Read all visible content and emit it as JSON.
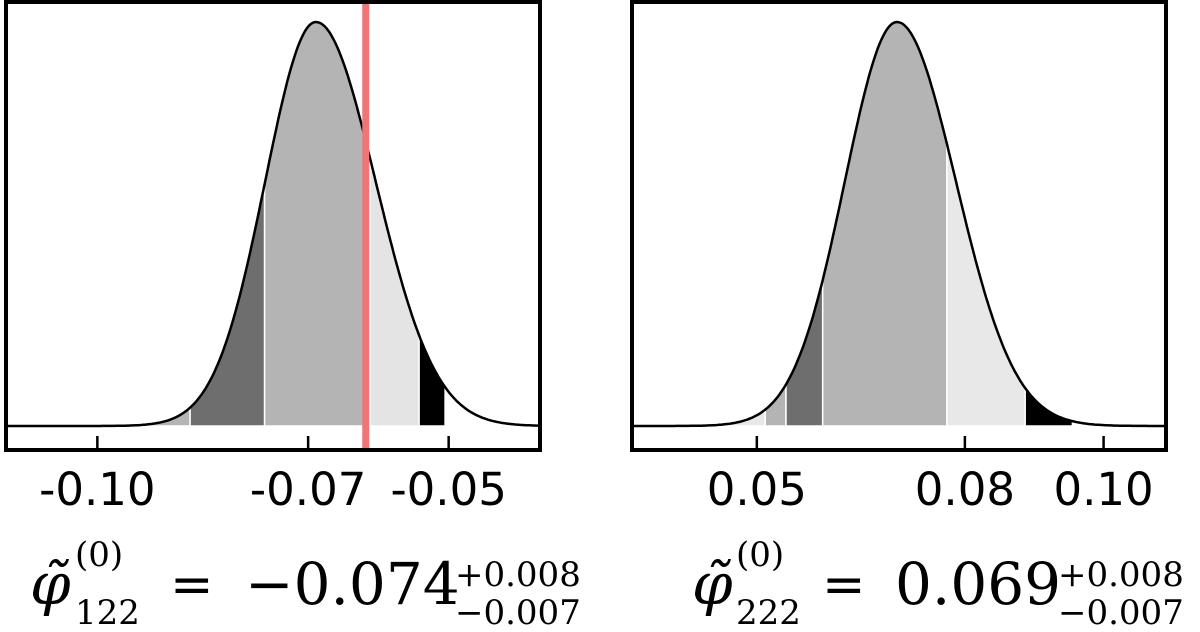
{
  "chart_data": [
    {
      "type": "area",
      "description_kind": "posterior density with shaded credible bands",
      "parameter": {
        "symbol": "φ̃",
        "superscript": "(0)",
        "subscript": "122"
      },
      "estimate": {
        "value": "−0.074",
        "plus": "+0.008",
        "minus": "−0.007",
        "equals": "="
      },
      "xlim": [
        -0.113,
        -0.037
      ],
      "mode": -0.0689,
      "sigma_left": 0.0072,
      "sigma_right": 0.0085,
      "band_edges": [
        -0.0985,
        -0.0935,
        -0.0868,
        -0.0762,
        -0.0612,
        -0.0542,
        -0.0505
      ],
      "band_shades": [
        "#e4e4e4",
        "#b4b4b4",
        "#6e6e6e",
        "#b4b4b4",
        "#e4e4e4"
      ],
      "truth_line": -0.0618,
      "truth_color": "#f07575",
      "xticks": [
        {
          "value": -0.1,
          "label": "-0.10"
        },
        {
          "value": -0.07,
          "label": "-0.07"
        },
        {
          "value": -0.05,
          "label": "-0.05"
        }
      ]
    },
    {
      "type": "area",
      "description_kind": "posterior density with shaded credible bands",
      "parameter": {
        "symbol": "φ̃",
        "superscript": "(0)",
        "subscript": "222"
      },
      "estimate": {
        "value": "0.069",
        "plus": "+0.008",
        "minus": "−0.007",
        "equals": "="
      },
      "xlim": [
        0.032,
        0.109
      ],
      "mode": 0.0702,
      "sigma_left": 0.0075,
      "sigma_right": 0.0085,
      "band_edges": [
        0.0462,
        0.0512,
        0.0542,
        0.0595,
        0.0774,
        0.0887,
        0.0955
      ],
      "band_shades": [
        "#e8e8e8",
        "#b4b4b4",
        "#6e6e6e",
        "#b4b4b4",
        "#e8e8e8"
      ],
      "truth_line": null,
      "truth_color": "#f07575",
      "xticks": [
        {
          "value": 0.05,
          "label": "0.05"
        },
        {
          "value": 0.08,
          "label": "0.08"
        },
        {
          "value": 0.1,
          "label": "0.10"
        }
      ]
    }
  ]
}
